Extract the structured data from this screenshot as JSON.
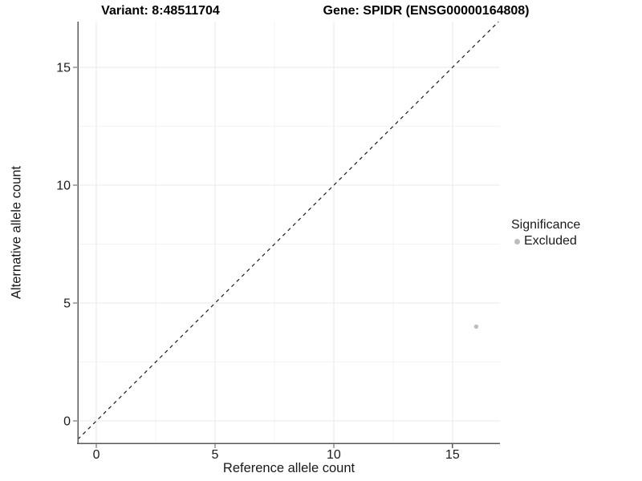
{
  "chart_data": {
    "type": "scatter",
    "titles": [
      "Variant: 8:48511704",
      "Gene: SPIDR (ENSG00000164808)"
    ],
    "xlabel": "Reference allele count",
    "ylabel": "Alternative allele count",
    "xlim": [
      -0.78,
      17.0
    ],
    "ylim": [
      -0.95,
      16.94
    ],
    "x_ticks": [
      0,
      5,
      10,
      15
    ],
    "y_ticks": [
      0,
      5,
      10,
      15
    ],
    "x_minor_ticks": [
      2.5,
      7.5,
      12.5
    ],
    "y_minor_ticks": [
      2.5,
      7.5,
      12.5
    ],
    "grid": true,
    "legend": {
      "title": "Significance",
      "position": "right"
    },
    "series": [
      {
        "name": "Excluded",
        "color": "#bdbdbd",
        "points": [
          {
            "x": 16,
            "y": 4
          }
        ]
      }
    ],
    "annotations": [
      {
        "type": "identity-line",
        "slope": 1,
        "intercept": 0,
        "style": "dashed",
        "color": "#1a1a1a"
      }
    ]
  },
  "colors": {
    "background": "#ffffff",
    "grid_major": "#e9e9e9",
    "grid_minor": "#f3f3f3",
    "axis_line": "#5a5a5a",
    "tick_text": "#1a1a1a",
    "title_text": "#000000",
    "point": "#bdbdbd"
  }
}
